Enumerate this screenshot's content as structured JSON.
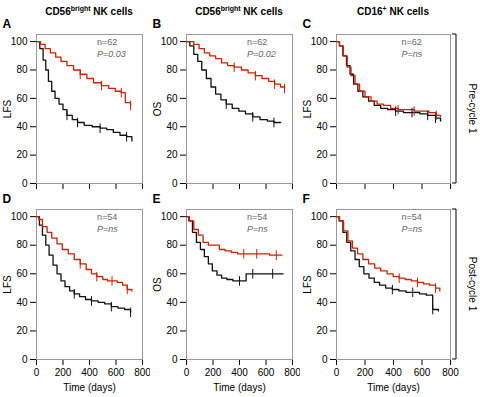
{
  "chart_data": [
    {
      "type": "step",
      "title": "CD56bright NK cells",
      "title_superscript": "bright",
      "panel_label": "A",
      "ylabel": "LFS",
      "annotations": [
        "n=62",
        "P=0.03"
      ],
      "xlim": [
        0,
        800
      ],
      "ylim": [
        0,
        105
      ],
      "xticks": [
        0,
        200,
        400,
        600,
        800
      ],
      "yticks": [
        0,
        20,
        40,
        60,
        80,
        100
      ],
      "tick_labels": "y",
      "series": [
        {
          "color": "#111111",
          "x": [
            0,
            25,
            50,
            70,
            90,
            115,
            140,
            170,
            200,
            230,
            270,
            310,
            360,
            420,
            480,
            530,
            580,
            630,
            680,
            720
          ],
          "values": [
            100,
            95,
            87,
            80,
            72,
            65,
            60,
            56,
            52,
            48,
            45,
            43,
            41,
            40,
            39,
            38,
            36,
            34,
            33,
            30
          ],
          "censored": {
            "x": [
              230,
              310,
              480,
              680
            ],
            "values": [
              48,
              43,
              39,
              33
            ]
          }
        },
        {
          "color": "#CC2200",
          "x": [
            0,
            30,
            65,
            105,
            145,
            185,
            230,
            280,
            330,
            380,
            430,
            490,
            545,
            595,
            640,
            670,
            710
          ],
          "values": [
            100,
            98,
            95,
            92,
            89,
            86,
            83,
            80,
            77,
            74,
            71,
            69,
            67,
            65,
            64,
            57,
            55
          ],
          "censored": {
            "x": [
              330,
              490,
              640,
              710
            ],
            "values": [
              77,
              69,
              64,
              55
            ]
          }
        }
      ]
    },
    {
      "type": "step",
      "title": "CD56bright NK cells",
      "title_superscript": "bright",
      "panel_label": "B",
      "ylabel": "OS",
      "annotations": [
        "n=62",
        "P=0.02"
      ],
      "xlim": [
        0,
        800
      ],
      "ylim": [
        0,
        105
      ],
      "xticks": [
        0,
        200,
        400,
        600,
        800
      ],
      "yticks": [
        0,
        20,
        40,
        60,
        80,
        100
      ],
      "tick_labels": "y",
      "series": [
        {
          "color": "#111111",
          "x": [
            0,
            25,
            55,
            85,
            115,
            150,
            185,
            220,
            260,
            300,
            345,
            395,
            445,
            500,
            555,
            610,
            660,
            710
          ],
          "values": [
            100,
            97,
            91,
            86,
            80,
            74,
            68,
            63,
            59,
            56,
            53,
            51,
            49,
            47,
            45,
            44,
            43,
            43
          ],
          "censored": {
            "x": [
              300,
              500,
              660
            ],
            "values": [
              56,
              47,
              43
            ]
          }
        },
        {
          "color": "#CC2200",
          "x": [
            0,
            20,
            55,
            95,
            135,
            175,
            220,
            265,
            310,
            360,
            415,
            465,
            520,
            570,
            620,
            665,
            710,
            740
          ],
          "values": [
            100,
            100,
            98,
            95,
            92,
            90,
            88,
            85,
            83,
            82,
            80,
            78,
            76,
            74,
            72,
            70,
            68,
            67
          ],
          "censored": {
            "x": [
              360,
              520,
              665,
              740
            ],
            "values": [
              82,
              76,
              70,
              67
            ]
          }
        }
      ]
    },
    {
      "type": "step",
      "title": "CD16+ NK cells",
      "title_superscript": "+",
      "panel_label": "C",
      "ylabel": "LFS",
      "side_label": "Pre-cycle 1",
      "annotations": [
        "n=62",
        "P=ns"
      ],
      "xlim": [
        0,
        800
      ],
      "ylim": [
        0,
        105
      ],
      "xticks": [
        0,
        200,
        400,
        600,
        800
      ],
      "yticks": [
        0,
        20,
        40,
        60,
        80,
        100
      ],
      "tick_labels": "y",
      "series": [
        {
          "color": "#111111",
          "x": [
            0,
            20,
            45,
            70,
            95,
            120,
            150,
            185,
            225,
            265,
            310,
            360,
            415,
            470,
            530,
            585,
            640,
            695,
            730
          ],
          "values": [
            100,
            97,
            90,
            83,
            77,
            70,
            65,
            61,
            58,
            55,
            53,
            52,
            51,
            50,
            50,
            49,
            48,
            46,
            44
          ],
          "censored": {
            "x": [
              415,
              530,
              640,
              695
            ],
            "values": [
              51,
              50,
              48,
              46
            ]
          }
        },
        {
          "color": "#CC2200",
          "x": [
            0,
            22,
            48,
            75,
            102,
            130,
            162,
            200,
            242,
            285,
            330,
            380,
            432,
            488,
            545,
            598,
            648,
            700,
            730
          ],
          "values": [
            100,
            97,
            90,
            82,
            76,
            70,
            65,
            61,
            58,
            56,
            55,
            53,
            52,
            52,
            51,
            51,
            50,
            48,
            47
          ],
          "censored": {
            "x": [
              432,
              545,
              700
            ],
            "values": [
              52,
              51,
              48
            ]
          }
        }
      ]
    },
    {
      "type": "step",
      "panel_label": "D",
      "ylabel": "LFS",
      "xlabel": "Time (days)",
      "annotations": [
        "n=54",
        "P=ns"
      ],
      "xlim": [
        0,
        800
      ],
      "ylim": [
        0,
        105
      ],
      "xticks": [
        0,
        200,
        400,
        600,
        800
      ],
      "yticks": [
        0,
        20,
        40,
        60,
        80,
        100
      ],
      "series": [
        {
          "color": "#111111",
          "x": [
            0,
            22,
            45,
            70,
            95,
            125,
            155,
            185,
            215,
            250,
            285,
            325,
            370,
            415,
            465,
            515,
            565,
            615,
            665,
            710
          ],
          "values": [
            100,
            94,
            87,
            80,
            73,
            66,
            60,
            55,
            51,
            48,
            46,
            44,
            42,
            41,
            40,
            39,
            37,
            36,
            35,
            33
          ],
          "censored": {
            "x": [
              285,
              415,
              565,
              710
            ],
            "values": [
              46,
              41,
              37,
              33
            ]
          }
        },
        {
          "color": "#CC2200",
          "x": [
            0,
            18,
            45,
            80,
            115,
            155,
            195,
            240,
            285,
            330,
            375,
            415,
            455,
            500,
            535,
            570,
            610,
            650,
            685,
            720
          ],
          "values": [
            100,
            98,
            93,
            89,
            85,
            81,
            77,
            74,
            70,
            67,
            63,
            60,
            58,
            56,
            55,
            55,
            54,
            52,
            49,
            48
          ],
          "censored": {
            "x": [
              330,
              455,
              570,
              685
            ],
            "values": [
              67,
              58,
              55,
              49
            ]
          }
        }
      ]
    },
    {
      "type": "step",
      "panel_label": "E",
      "ylabel": "OS",
      "xlabel": "Time (days)",
      "annotations": [
        "n=54",
        "P=ns"
      ],
      "xlim": [
        0,
        800
      ],
      "ylim": [
        0,
        105
      ],
      "xticks": [
        0,
        200,
        400,
        600,
        800
      ],
      "yticks": [
        0,
        20,
        40,
        60,
        80,
        100
      ],
      "series": [
        {
          "color": "#111111",
          "x": [
            0,
            18,
            45,
            75,
            105,
            135,
            165,
            195,
            230,
            265,
            305,
            350,
            400,
            450,
            500,
            550,
            600,
            650,
            700,
            730
          ],
          "values": [
            100,
            97,
            89,
            82,
            77,
            72,
            67,
            62,
            59,
            57,
            56,
            55,
            55,
            60,
            60,
            60,
            60,
            60,
            60,
            60
          ],
          "censored": {
            "x": [
              400,
              500,
              650
            ],
            "values": [
              55,
              60,
              60
            ]
          }
        },
        {
          "color": "#CC2200",
          "x": [
            0,
            22,
            55,
            90,
            125,
            165,
            205,
            248,
            292,
            338,
            385,
            432,
            480,
            530,
            580,
            628,
            678,
            720
          ],
          "values": [
            100,
            97,
            91,
            87,
            82,
            80,
            80,
            77,
            76,
            75,
            74,
            74,
            74,
            74,
            74,
            73,
            73,
            73
          ],
          "censored": {
            "x": [
              432,
              530,
              678
            ],
            "values": [
              74,
              74,
              73
            ]
          }
        }
      ]
    },
    {
      "type": "step",
      "panel_label": "F",
      "ylabel": "LFS",
      "xlabel": "Time (days)",
      "side_label": "Post-cycle 1",
      "annotations": [
        "n=54",
        "P=ns"
      ],
      "xlim": [
        0,
        800
      ],
      "ylim": [
        0,
        105
      ],
      "xticks": [
        0,
        200,
        400,
        600,
        800
      ],
      "yticks": [
        0,
        20,
        40,
        60,
        80,
        100
      ],
      "series": [
        {
          "color": "#111111",
          "x": [
            0,
            18,
            45,
            72,
            100,
            130,
            160,
            192,
            228,
            265,
            302,
            345,
            392,
            438,
            488,
            535,
            582,
            630,
            675,
            715
          ],
          "values": [
            100,
            97,
            89,
            82,
            76,
            70,
            65,
            60,
            57,
            54,
            52,
            50,
            49,
            48,
            47,
            47,
            46,
            45,
            35,
            34
          ],
          "censored": {
            "x": [
              392,
              535,
              675
            ],
            "values": [
              49,
              47,
              35
            ]
          }
        },
        {
          "color": "#CC2200",
          "x": [
            0,
            22,
            50,
            80,
            112,
            148,
            185,
            225,
            268,
            310,
            355,
            398,
            440,
            482,
            525,
            568,
            610,
            652,
            695,
            725
          ],
          "values": [
            100,
            97,
            90,
            83,
            78,
            74,
            70,
            67,
            64,
            62,
            60,
            58,
            57,
            56,
            55,
            54,
            53,
            52,
            50,
            48
          ],
          "censored": {
            "x": [
              440,
              568,
              695
            ],
            "values": [
              57,
              54,
              50
            ]
          }
        }
      ]
    }
  ]
}
